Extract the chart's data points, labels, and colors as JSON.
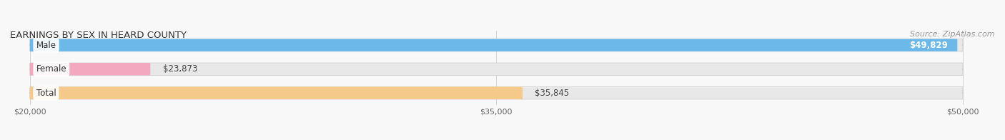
{
  "title": "EARNINGS BY SEX IN HEARD COUNTY",
  "source": "Source: ZipAtlas.com",
  "categories": [
    "Male",
    "Female",
    "Total"
  ],
  "values": [
    49829,
    23873,
    35845
  ],
  "bar_colors": [
    "#6cb8e8",
    "#f4a8c0",
    "#f5c98a"
  ],
  "bar_bg_color": "#e8e8e8",
  "xmin": 20000,
  "xmax": 50000,
  "xticks": [
    20000,
    35000,
    50000
  ],
  "xtick_labels": [
    "$20,000",
    "$35,000",
    "$50,000"
  ],
  "title_fontsize": 9.5,
  "source_fontsize": 8,
  "label_fontsize": 8.5,
  "value_fontsize": 8.5,
  "bar_height": 0.52,
  "background_color": "#f8f8f8"
}
